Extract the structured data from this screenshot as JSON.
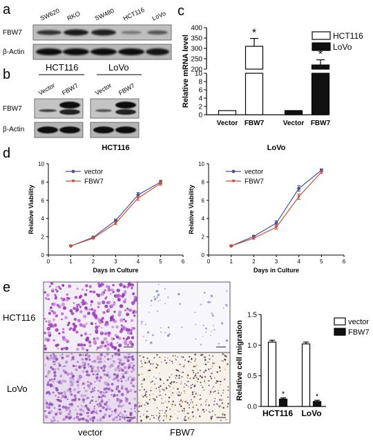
{
  "panel_labels": {
    "a": "a",
    "b": "b",
    "c": "c",
    "d": "d",
    "e": "e"
  },
  "panel_a": {
    "lanes": [
      "SW620",
      "RKO",
      "SW480",
      "HCT116",
      "LoVo"
    ],
    "rows": [
      "FBW7",
      "β-Actin"
    ]
  },
  "panel_b": {
    "groups": [
      "HCT116",
      "LoVo"
    ],
    "lanes": [
      "Vector",
      "FBW7",
      "Vector",
      "FBW7"
    ],
    "rows": [
      "FBW7",
      "β-Actin"
    ]
  },
  "panel_e_images": {
    "row_labels": [
      "HCT116",
      "LoVo"
    ],
    "col_labels": [
      "vector",
      "FBW7"
    ]
  },
  "chart_data": [
    {
      "id": "c",
      "type": "bar",
      "ylabel": "Relative mRNA level",
      "categories": [
        "Vector",
        "FBW7",
        "Vector",
        "FBW7"
      ],
      "series": [
        {
          "name": "HCT116",
          "values": [
            1,
            310,
            null,
            null
          ],
          "errors": [
            0.2,
            38,
            null,
            null
          ]
        },
        {
          "name": "LoVo",
          "values": [
            null,
            null,
            1,
            220
          ],
          "errors": [
            null,
            null,
            0.2,
            25
          ]
        }
      ],
      "yticks_top": [
        "400",
        "350",
        "300",
        "250",
        "200"
      ],
      "yticks_bottom": [
        "10",
        "8",
        "6",
        "4",
        "2",
        "0"
      ],
      "significance": [
        "*",
        "*"
      ],
      "legend": "top-right"
    },
    {
      "id": "d-left",
      "type": "line",
      "title": "HCT116",
      "xlabel": "Days in Culture",
      "ylabel": "Relative Viability",
      "x": [
        1,
        2,
        3,
        4,
        5
      ],
      "xlim": [
        0,
        6
      ],
      "ylim": [
        0,
        10
      ],
      "xticks": [
        "0",
        "1",
        "2",
        "3",
        "4",
        "5",
        "6"
      ],
      "yticks": [
        "0",
        "2",
        "4",
        "6",
        "8",
        "10"
      ],
      "series": [
        {
          "name": "vector",
          "values": [
            1.0,
            1.95,
            3.8,
            6.6,
            8.0
          ],
          "errors": [
            0.05,
            0.1,
            0.15,
            0.25,
            0.2
          ],
          "color": "#4b4f9e"
        },
        {
          "name": "FBW7",
          "values": [
            1.0,
            1.85,
            3.5,
            6.25,
            7.85
          ],
          "errors": [
            0.05,
            0.1,
            0.15,
            0.25,
            0.2
          ],
          "color": "#c9503c"
        }
      ],
      "legend": "top-left"
    },
    {
      "id": "d-right",
      "type": "line",
      "title": "LoVo",
      "xlabel": "Days in Culture",
      "ylabel": "Relative Viability",
      "x": [
        1,
        2,
        3,
        4,
        5
      ],
      "xlim": [
        0,
        6
      ],
      "ylim": [
        0,
        10
      ],
      "xticks": [
        "0",
        "1",
        "2",
        "3",
        "4",
        "5",
        "6"
      ],
      "yticks": [
        "0",
        "2",
        "4",
        "6",
        "8",
        "10"
      ],
      "series": [
        {
          "name": "vector",
          "values": [
            1.0,
            2.05,
            3.5,
            7.3,
            9.3
          ],
          "errors": [
            0.05,
            0.1,
            0.25,
            0.3,
            0.15
          ],
          "color": "#4b4f9e"
        },
        {
          "name": "FBW7",
          "values": [
            1.0,
            1.85,
            3.05,
            6.4,
            9.1
          ],
          "errors": [
            0.05,
            0.1,
            0.2,
            0.3,
            0.15
          ],
          "color": "#c9503c"
        }
      ],
      "legend": "top-left"
    },
    {
      "id": "e",
      "type": "bar",
      "ylabel": "Relative cell migration",
      "categories": [
        "HCT116",
        "LoVo"
      ],
      "ylim": [
        0,
        1.5
      ],
      "yticks": [
        "0.0",
        "0.5",
        "1.0",
        "1.5"
      ],
      "series": [
        {
          "name": "vector",
          "values": [
            1.05,
            1.02
          ],
          "errors": [
            0.03,
            0.03
          ]
        },
        {
          "name": "FBW7",
          "values": [
            0.12,
            0.08
          ],
          "errors": [
            0.02,
            0.02
          ]
        }
      ],
      "significance": [
        "*",
        "*"
      ],
      "legend": "top-right"
    }
  ]
}
